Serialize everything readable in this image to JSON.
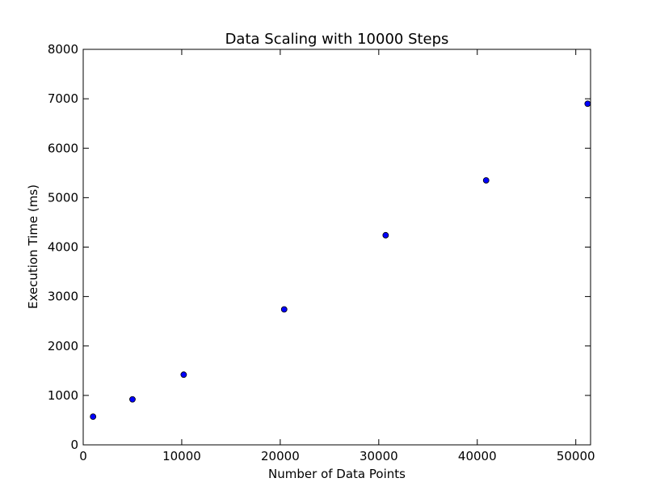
{
  "chart_data": {
    "type": "scatter",
    "title": "Data Scaling with 10000 Steps",
    "xlabel": "Number of Data Points",
    "ylabel": "Execution Time (ms)",
    "xlim": [
      0,
      51500
    ],
    "ylim": [
      0,
      8000
    ],
    "xticks": [
      0,
      10000,
      20000,
      30000,
      40000,
      50000
    ],
    "yticks": [
      0,
      1000,
      2000,
      3000,
      4000,
      5000,
      6000,
      7000,
      8000
    ],
    "grid": false,
    "marker_color": "#0000ff",
    "marker_edge_color": "#000000",
    "points": [
      {
        "x": 1000,
        "y": 570
      },
      {
        "x": 5000,
        "y": 920
      },
      {
        "x": 10200,
        "y": 1420
      },
      {
        "x": 20400,
        "y": 2740
      },
      {
        "x": 30700,
        "y": 4240
      },
      {
        "x": 40900,
        "y": 5350
      },
      {
        "x": 51200,
        "y": 6900
      }
    ]
  }
}
